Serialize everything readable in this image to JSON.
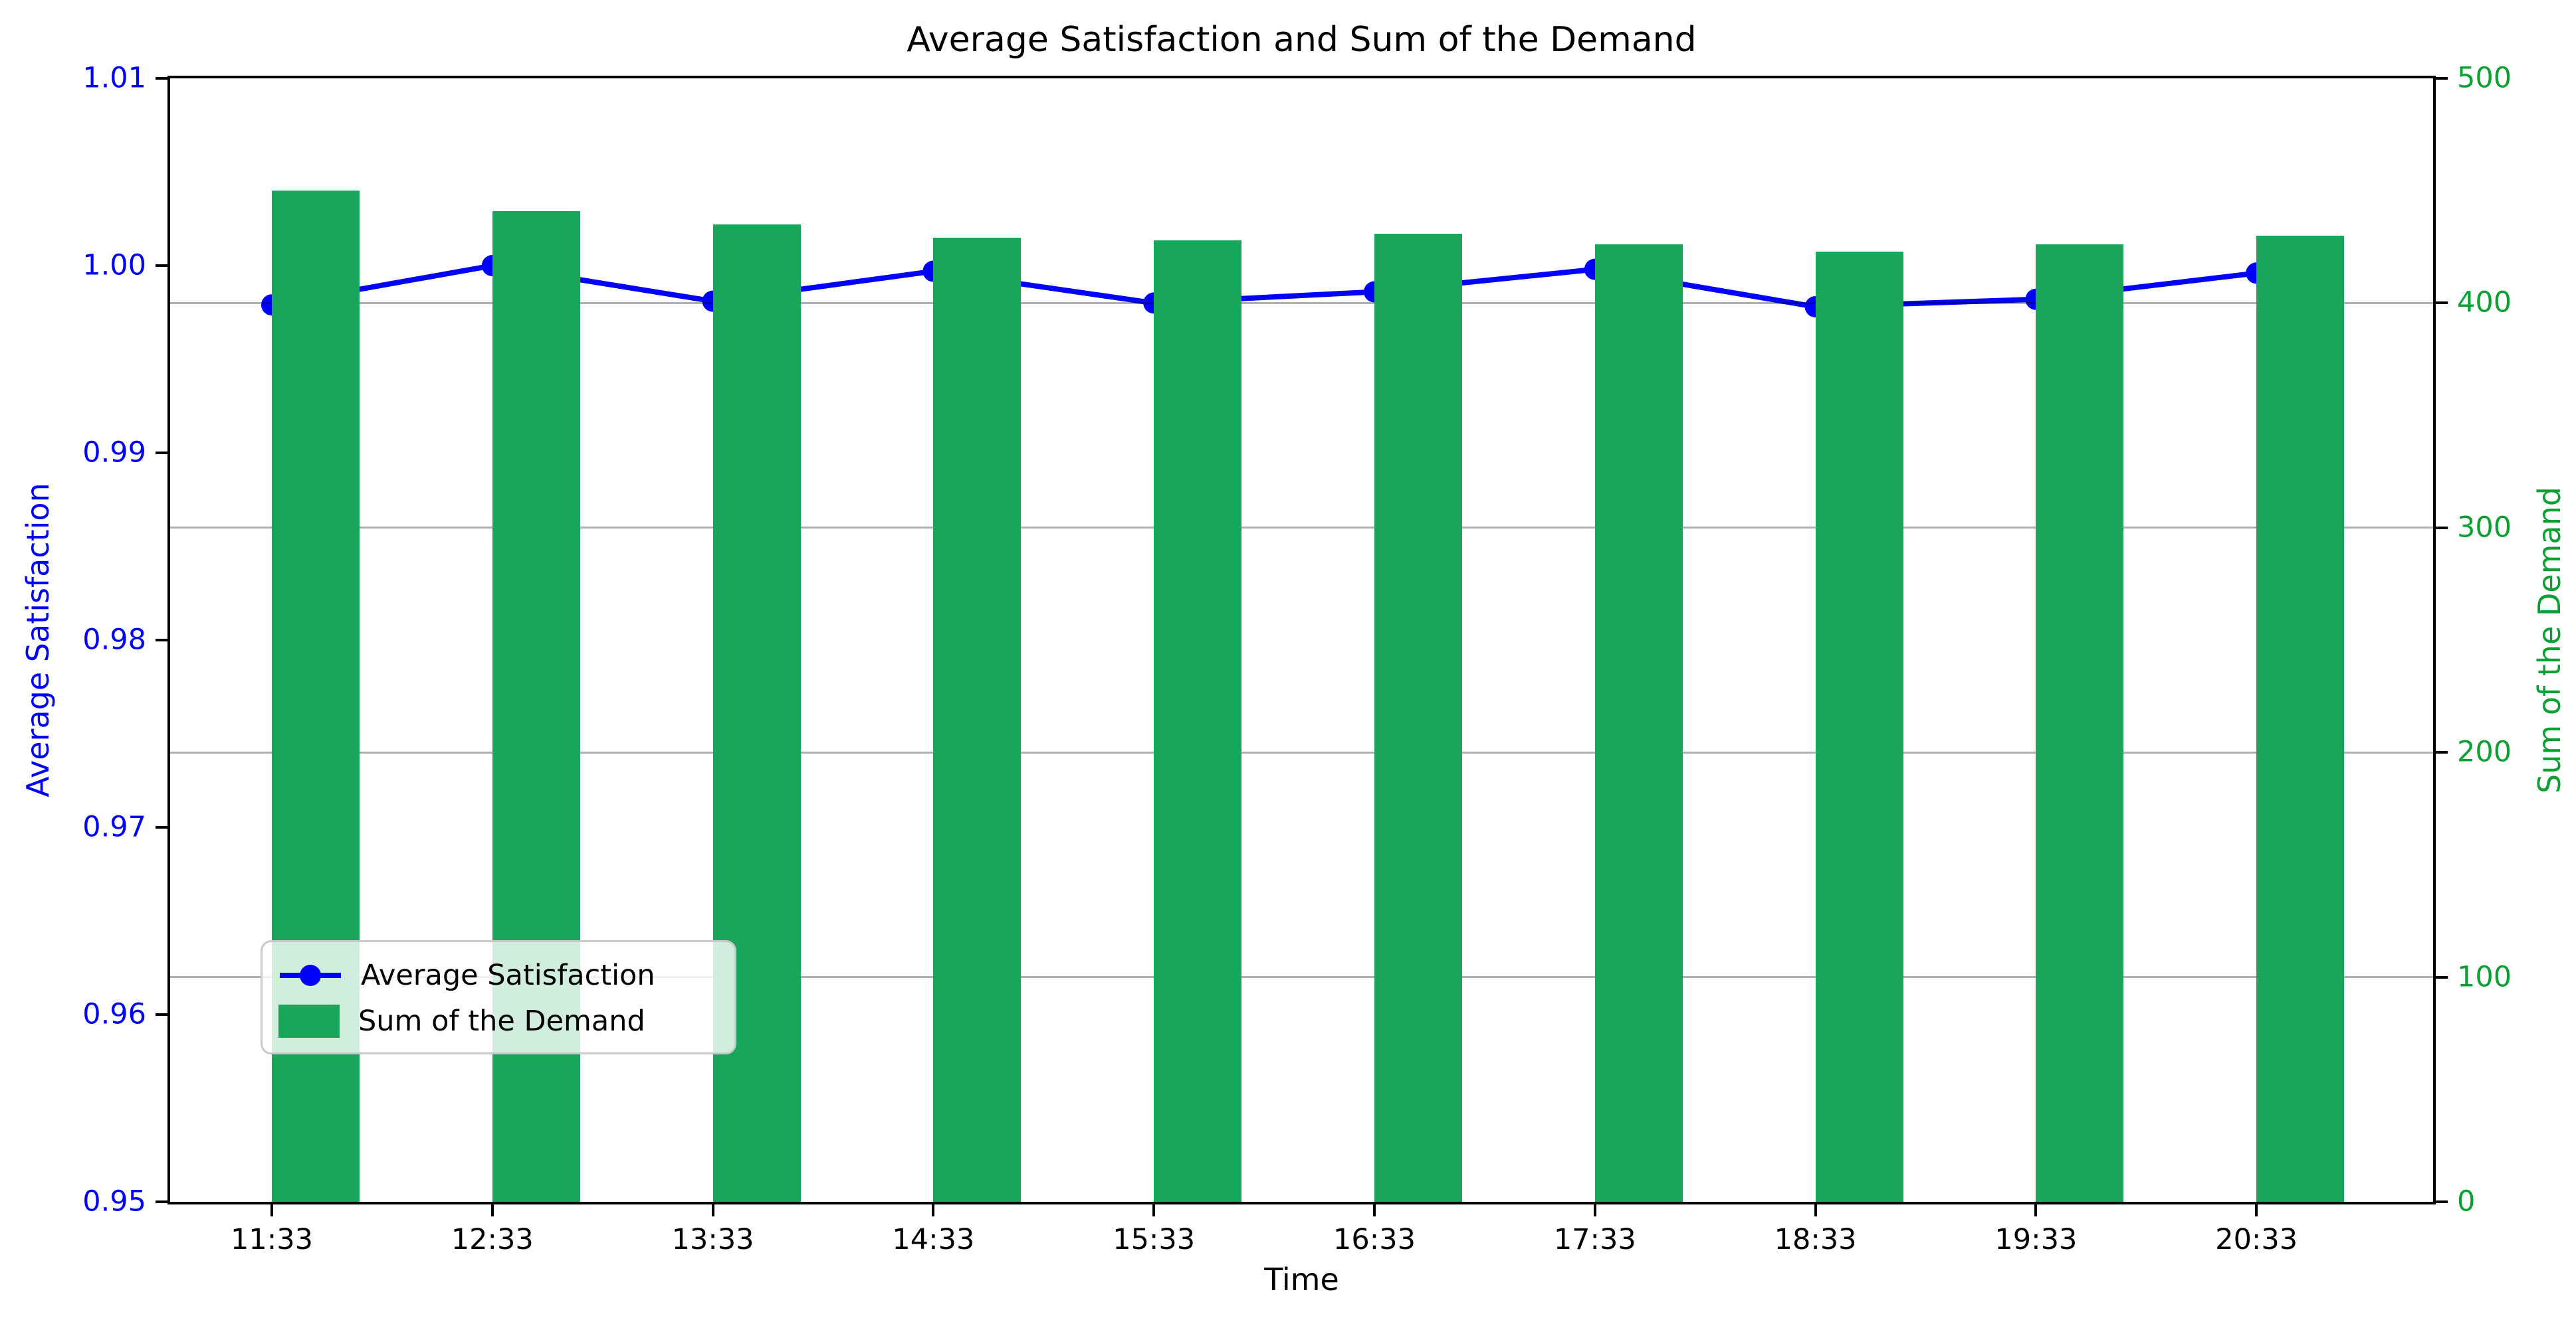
{
  "figure": {
    "background": "#ffffff"
  },
  "chart_data": {
    "type": "combo",
    "title": "Average Satisfaction and Sum of the Demand",
    "xlabel": "Time",
    "ylabel_left": "Average Satisfaction",
    "ylabel_right": "Sum of the Demand",
    "categories": [
      "11:33",
      "12:33",
      "13:33",
      "14:33",
      "15:33",
      "16:33",
      "17:33",
      "18:33",
      "19:33",
      "20:33"
    ],
    "series": [
      {
        "name": "Average Satisfaction",
        "type": "line",
        "axis": "left",
        "marker": "circle",
        "values": [
          0.9979,
          1.0,
          0.9981,
          0.9997,
          0.998,
          0.9986,
          0.9998,
          0.9978,
          0.9982,
          0.9996
        ]
      },
      {
        "name": "Sum of the Demand",
        "type": "bar",
        "axis": "right",
        "values": [
          450,
          441,
          435,
          429,
          428,
          431,
          426,
          423,
          426,
          430
        ]
      }
    ],
    "ylim_left": [
      0.95,
      1.01
    ],
    "ylim_right": [
      0,
      500
    ],
    "yticks_left": [
      0.95,
      0.96,
      0.97,
      0.98,
      0.99,
      1.0,
      1.01
    ],
    "yticks_right": [
      0,
      100,
      200,
      300,
      400,
      500
    ],
    "grid": {
      "horizontal": true,
      "at_right_axis_values": [
        100,
        200,
        300,
        400
      ]
    },
    "legend": {
      "position": "lower left"
    }
  },
  "colors": {
    "line_blue": "#0000ff",
    "bar_green": "#1aa65a",
    "left_axis_text": "#0000ff",
    "right_axis_text": "#0aa032",
    "grid": "#b0b0b0",
    "spine": "#000000",
    "title_text": "#000000"
  }
}
